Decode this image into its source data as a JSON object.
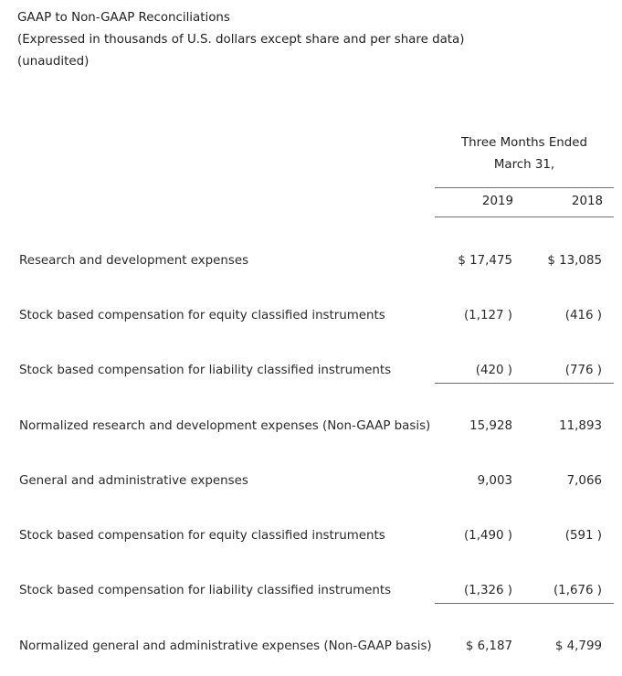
{
  "header": {
    "title": "GAAP to Non-GAAP Reconciliations",
    "subtitle": "(Expressed in thousands of U.S. dollars except share and per share data)",
    "note": "(unaudited)"
  },
  "columns": {
    "period_line1": "Three Months Ended",
    "period_line2": "March 31,",
    "years": [
      "2019",
      "2018"
    ]
  },
  "rows": [
    {
      "label": "Research and development expenses",
      "v2019": "$ 17,475",
      "v2018": "$ 13,085"
    },
    {
      "label": "Stock based compensation for equity classified instruments",
      "v2019": "(1,127 )",
      "v2018": "(416 )"
    },
    {
      "label": "Stock based compensation for liability classified instruments",
      "v2019": "(420 )",
      "v2018": "(776 )"
    },
    {
      "label": "Normalized research and development expenses (Non-GAAP basis)",
      "v2019": "15,928",
      "v2018": "11,893"
    },
    {
      "label": "General and administrative expenses",
      "v2019": "9,003",
      "v2018": "7,066"
    },
    {
      "label": "Stock based compensation for equity classified instruments",
      "v2019": "(1,490 )",
      "v2018": "(591 )"
    },
    {
      "label": "Stock based compensation for liability classified instruments",
      "v2019": "(1,326 )",
      "v2018": "(1,676 )"
    },
    {
      "label": "Normalized general and administrative expenses (Non-GAAP basis)",
      "v2019": "$ 6,187",
      "v2018": "$ 4,799"
    }
  ]
}
